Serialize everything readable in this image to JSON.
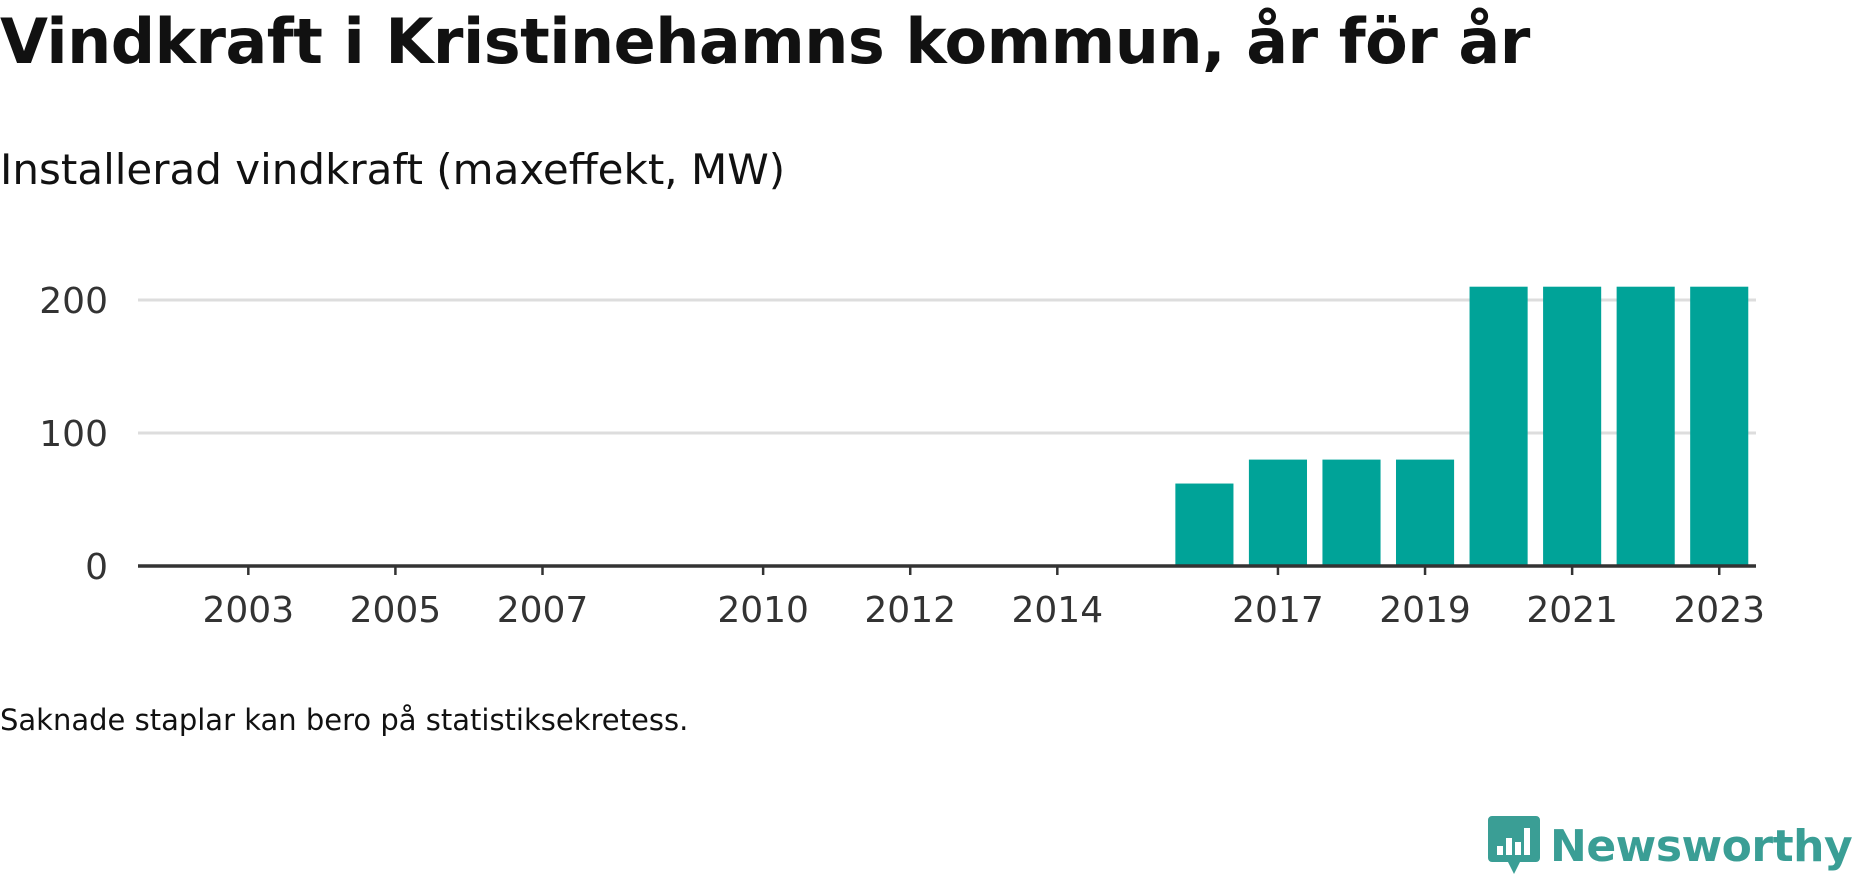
{
  "title": "Vindkraft i Kristinehamns kommun, år för år",
  "subtitle": "Installerad vindkraft (maxeffekt, MW)",
  "footnote": "Saknade staplar kan bero på statistiksekretess.",
  "brand": {
    "name": "Newsworthy",
    "icon": "newsworthy-logo-icon",
    "color": "#3a9e95"
  },
  "colors": {
    "bar": "#00a398",
    "grid": "#dddddd",
    "axis": "#333333",
    "tick_text": "#333333"
  },
  "chart_data": {
    "type": "bar",
    "categories": [
      "2002",
      "2003",
      "2004",
      "2005",
      "2006",
      "2007",
      "2008",
      "2009",
      "2010",
      "2011",
      "2012",
      "2013",
      "2014",
      "2015",
      "2016",
      "2017",
      "2018",
      "2019",
      "2020",
      "2021",
      "2022",
      "2023"
    ],
    "values": [
      null,
      null,
      null,
      null,
      null,
      null,
      null,
      null,
      null,
      null,
      null,
      null,
      null,
      null,
      62,
      80,
      80,
      80,
      210,
      210,
      210,
      210
    ],
    "x_tick_labels": [
      "2003",
      "2005",
      "2007",
      "2010",
      "2012",
      "2014",
      "2017",
      "2019",
      "2021",
      "2023"
    ],
    "y_ticks": [
      0,
      100,
      200
    ],
    "ylim": [
      0,
      230
    ],
    "title": "Vindkraft i Kristinehamns kommun, år för år",
    "ylabel": "Installerad vindkraft (maxeffekt, MW)",
    "xlabel": "",
    "grid": true,
    "legend": "none"
  }
}
